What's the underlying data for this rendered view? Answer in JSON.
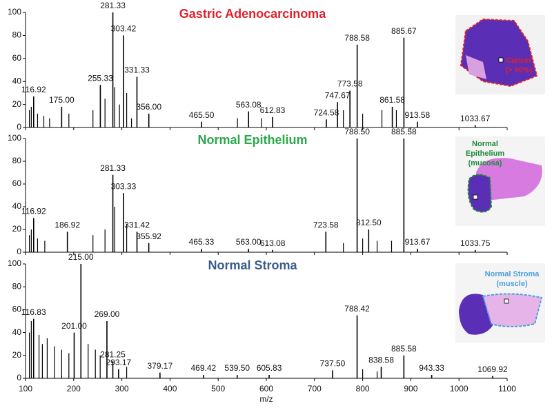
{
  "chart_data": {
    "type": "spectrum",
    "xlabel": "m/z",
    "xlim": [
      100,
      1100
    ],
    "xticks": [
      100,
      200,
      300,
      400,
      500,
      600,
      700,
      800,
      900,
      1000,
      1100
    ],
    "ylim": [
      0,
      100
    ],
    "yticks": [
      0,
      20,
      40,
      60,
      80,
      100
    ],
    "color": "#000000",
    "panels": [
      {
        "title": "Gastric Adenocarcinoma",
        "title_color": "#e3202a",
        "inset_label": [
          "Cancer",
          "(> 90%)"
        ],
        "inset_color": "#e3202a",
        "x": [
          116.92,
          {
            "value": 175,
            "label": "175.00"
          },
          255.33,
          281.33,
          303.42,
          331.33,
          {
            "value": 356,
            "label": "356.00"
          },
          {
            "value": 465.5,
            "label": "465.50"
          },
          563.08,
          612.83,
          724.58,
          747.67,
          773.58,
          788.58,
          861.58,
          885.67,
          913.58,
          1033.67
        ],
        "values": [
          27,
          18,
          37,
          100,
          80,
          44,
          12,
          5,
          14,
          9,
          7,
          22,
          32,
          72,
          18,
          78,
          5,
          2
        ],
        "minor_x": [
          108,
          112,
          125,
          138,
          150,
          190,
          240,
          265,
          285,
          295,
          310,
          320,
          540,
          590,
          760,
          800,
          840,
          870
        ],
        "minor_values": [
          15,
          18,
          12,
          10,
          8,
          12,
          15,
          25,
          35,
          20,
          30,
          8,
          8,
          8,
          15,
          12,
          15,
          15
        ]
      },
      {
        "title": "Normal Epithelium",
        "title_color": "#2aa84a",
        "inset_label": [
          "Normal",
          "Epithelium",
          "(mucosa)"
        ],
        "inset_color": "#1f8a3a",
        "x": [
          116.92,
          186.92,
          281.33,
          303.33,
          331.42,
          355.92,
          465.33,
          {
            "value": 563,
            "label": "563.00"
          },
          613.08,
          723.58,
          {
            "value": 788.5,
            "label": "788.50"
          },
          {
            "value": 812.5,
            "label": "812.50"
          },
          885.58,
          913.67,
          1033.75
        ],
        "values": [
          30,
          18,
          68,
          52,
          18,
          8,
          3,
          3,
          2,
          18,
          100,
          20,
          100,
          3,
          2
        ],
        "minor_x": [
          108,
          112,
          125,
          140,
          240,
          265,
          285,
          310,
          760,
          800,
          830,
          860
        ],
        "minor_values": [
          15,
          20,
          12,
          10,
          15,
          20,
          40,
          25,
          8,
          12,
          10,
          10
        ]
      },
      {
        "title": "Normal Stroma",
        "title_color": "#3a5d8c",
        "inset_label": [
          "Normal Stroma",
          "(muscle)"
        ],
        "inset_color": "#4a9fe0",
        "x": [
          116.83,
          {
            "value": 201,
            "label": "201.00"
          },
          {
            "value": 215,
            "label": "215.00"
          },
          {
            "value": 269,
            "label": "269.00"
          },
          281.25,
          293.17,
          379.17,
          469.42,
          {
            "value": 539.5,
            "label": "539.50"
          },
          605.83,
          {
            "value": 737.5,
            "label": "737.50"
          },
          788.42,
          838.58,
          885.58,
          943.33,
          1069.92
        ],
        "values": [
          52,
          40,
          100,
          50,
          15,
          8,
          5,
          3,
          3,
          3,
          7,
          55,
          10,
          20,
          3,
          2
        ],
        "minor_x": [
          108,
          112,
          128,
          135,
          145,
          160,
          175,
          190,
          230,
          245,
          255,
          310,
          800,
          830
        ],
        "minor_values": [
          40,
          50,
          38,
          30,
          35,
          28,
          25,
          22,
          30,
          25,
          20,
          10,
          8,
          6
        ]
      }
    ]
  }
}
